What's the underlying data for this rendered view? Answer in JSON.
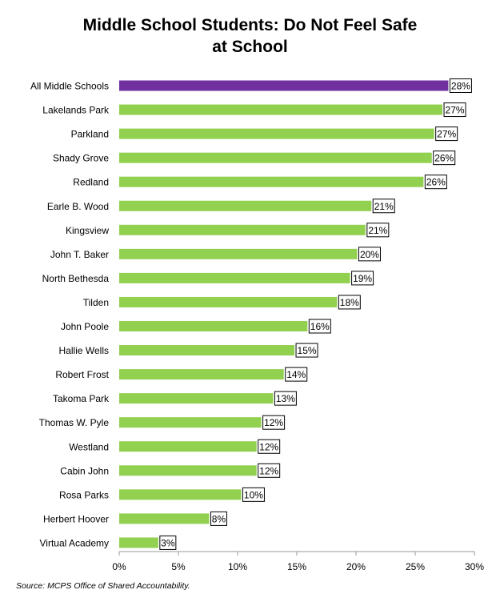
{
  "chart_data": {
    "type": "bar",
    "orientation": "horizontal",
    "title_lines": [
      "Middle School Students: Do Not Feel Safe",
      "at School"
    ],
    "categories": [
      "All Middle Schools",
      "Lakelands Park",
      "Parkland",
      "Shady Grove",
      "Redland",
      "Earle B. Wood",
      "Kingsview",
      "John T. Baker",
      "North Bethesda",
      "Tilden",
      "John Poole",
      "Hallie Wells",
      "Robert Frost",
      "Takoma Park",
      "Thomas W. Pyle",
      "Westland",
      "Cabin John",
      "Rosa Parks",
      "Herbert Hoover",
      "Virtual Academy"
    ],
    "values": [
      27.8,
      27.3,
      26.6,
      26.4,
      25.7,
      21.3,
      20.8,
      20.1,
      19.5,
      18.4,
      15.9,
      14.8,
      13.9,
      13.0,
      12.0,
      11.6,
      11.6,
      10.3,
      7.6,
      3.3
    ],
    "data_labels": [
      "28%",
      "27%",
      "27%",
      "26%",
      "26%",
      "21%",
      "21%",
      "20%",
      "19%",
      "18%",
      "16%",
      "15%",
      "14%",
      "13%",
      "12%",
      "12%",
      "12%",
      "10%",
      "8%",
      "3%"
    ],
    "xlim": [
      0,
      30
    ],
    "x_ticks": [
      0,
      5,
      10,
      15,
      20,
      25,
      30
    ],
    "x_tick_labels": [
      "0%",
      "5%",
      "10%",
      "15%",
      "20%",
      "25%",
      "30%"
    ],
    "highlight_index": 0,
    "colors": {
      "highlight": "#7030a0",
      "bar": "#92d050",
      "axis": "#999999"
    },
    "grid": false,
    "legend": "none"
  },
  "source": "Source: MCPS Office of Shared Accountability."
}
